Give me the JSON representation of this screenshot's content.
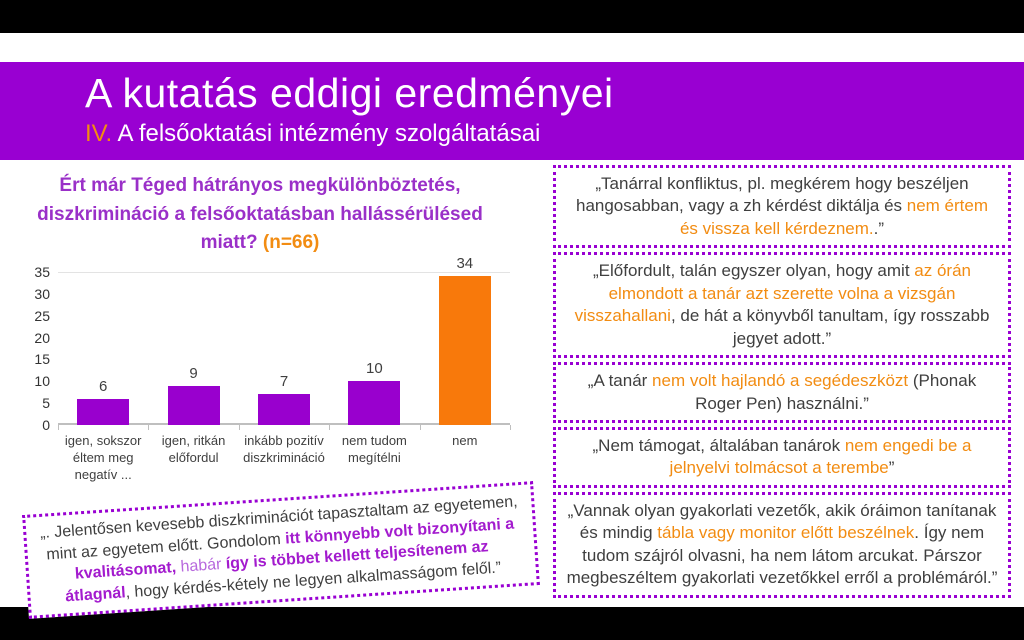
{
  "slide": {
    "title": "A kutatás eddigi eredményei",
    "subtitle_number": "IV.",
    "subtitle": " A felsőoktatási intézmény szolgáltatásai"
  },
  "colors": {
    "header_purple": "#9900D2",
    "bar_purple": "#9900CE",
    "bar_orange": "#F8790B",
    "text_orange": "#F28C12",
    "question_purple": "#9A30C8",
    "quote_border_purple": "#9900D2",
    "quote_text_gray": "#3F3F3F",
    "highlight_purple_bold": "#A31BCE",
    "highlight_purple_light": "#B768DD"
  },
  "question": {
    "segments": [
      {
        "text": "Ért már Téged hátrányos megkülönböztetés, diszkrimináció a felsőoktatásban hallássérülésed miatt? ",
        "style": "question"
      },
      {
        "text": "(n=66)",
        "style": "orange"
      }
    ]
  },
  "chart_data": {
    "type": "bar",
    "title": "",
    "xlabel": "",
    "ylabel": "",
    "categories": [
      "igen, sokszor éltem meg negatív ...",
      "igen, ritkán előfordul",
      "inkább pozitív diszkrimináció",
      "nem tudom megítélni",
      "nem"
    ],
    "values": [
      6,
      9,
      7,
      10,
      34
    ],
    "bar_colors": [
      "#9900CE",
      "#9900CE",
      "#9900CE",
      "#9900CE",
      "#F8790B"
    ],
    "ylim": [
      0,
      35
    ],
    "ytick_step": 5,
    "grid": false,
    "legend": false,
    "data_labels": true
  },
  "quotes": [
    {
      "segments": [
        {
          "text": "„Tanárral konfliktus, pl. megkérem hogy beszéljen hangosabban, vagy a zh kérdést diktálja és ",
          "style": "normal"
        },
        {
          "text": "nem értem és vissza kell kérdeznem.",
          "style": "orange"
        },
        {
          "text": ".”",
          "style": "normal"
        }
      ]
    },
    {
      "segments": [
        {
          "text": "„Előfordult, talán egyszer olyan, hogy amit ",
          "style": "normal"
        },
        {
          "text": "az órán elmondott a tanár azt szerette volna a vizsgán visszahallani",
          "style": "orange"
        },
        {
          "text": ", de hát a könyvből tanultam, így rosszabb jegyet adott.”",
          "style": "normal"
        }
      ]
    },
    {
      "segments": [
        {
          "text": "„A tanár ",
          "style": "normal"
        },
        {
          "text": "nem volt hajlandó a segédeszközt",
          "style": "orange"
        },
        {
          "text": " (Phonak Roger Pen) használni.”",
          "style": "normal"
        }
      ]
    },
    {
      "segments": [
        {
          "text": "„Nem támogat, általában tanárok ",
          "style": "normal"
        },
        {
          "text": "nem engedi be a jelnyelvi tolmácsot a terembe",
          "style": "orange"
        },
        {
          "text": "”",
          "style": "normal"
        }
      ]
    },
    {
      "segments": [
        {
          "text": "„Vannak olyan gyakorlati vezetők, akik óráimon tanítanak és mindig ",
          "style": "normal"
        },
        {
          "text": "tábla vagy monitor előtt beszélnek",
          "style": "orange"
        },
        {
          "text": ". Így nem tudom szájról olvasni, ha nem látom arcukat. Párszor megbeszéltem gyakorlati vezetőkkel erről a problémáról.”",
          "style": "normal"
        }
      ]
    }
  ],
  "rotated_quote": {
    "segments": [
      {
        "text": "„.  Jelentősen kevesebb diszkriminációt tapasztaltam az egyetemen, mint az egyetem előtt. Gondolom ",
        "style": "normal"
      },
      {
        "text": "itt könnyebb volt bizonyítani a kvalitásomat,",
        "style": "purpleBold"
      },
      {
        "text": " habár ",
        "style": "purpleLight"
      },
      {
        "text": "így is többet kellett teljesítenem az átlagnál",
        "style": "purpleBold"
      },
      {
        "text": ", hogy kérdés-kétely ne legyen alkalmasságom felől.”",
        "style": "normal"
      }
    ]
  }
}
